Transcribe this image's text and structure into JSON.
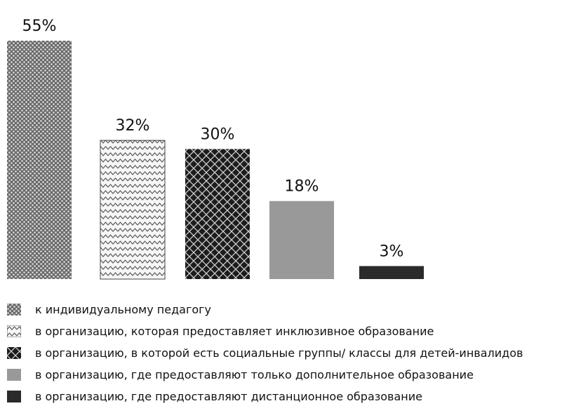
{
  "chart_data": {
    "type": "bar",
    "categories": [
      "к индивидуальному педагогу",
      "в организацию, которая предоставляет инклюзивное образование",
      "в организацию, в которой есть социальные группы/ классы для детей-инвалидов",
      "в организацию, где предоставляют только дополнительное образование",
      "в организацию, где предоставляют дистанционное образование"
    ],
    "values": [
      55,
      32,
      30,
      18,
      3
    ],
    "value_labels": [
      "55%",
      "32%",
      "30%",
      "18%",
      "3%"
    ],
    "patterns": [
      "dots",
      "zigzag",
      "crosshatch-dark",
      "solid-gray",
      "solid-black"
    ],
    "colors": [
      "#707070",
      "#f4f4f4",
      "#1a1a1a",
      "#999999",
      "#2a2a2a"
    ],
    "title": "",
    "xlabel": "",
    "ylabel": "",
    "ylim": [
      0,
      55
    ],
    "legend_position": "bottom",
    "grid": false
  }
}
